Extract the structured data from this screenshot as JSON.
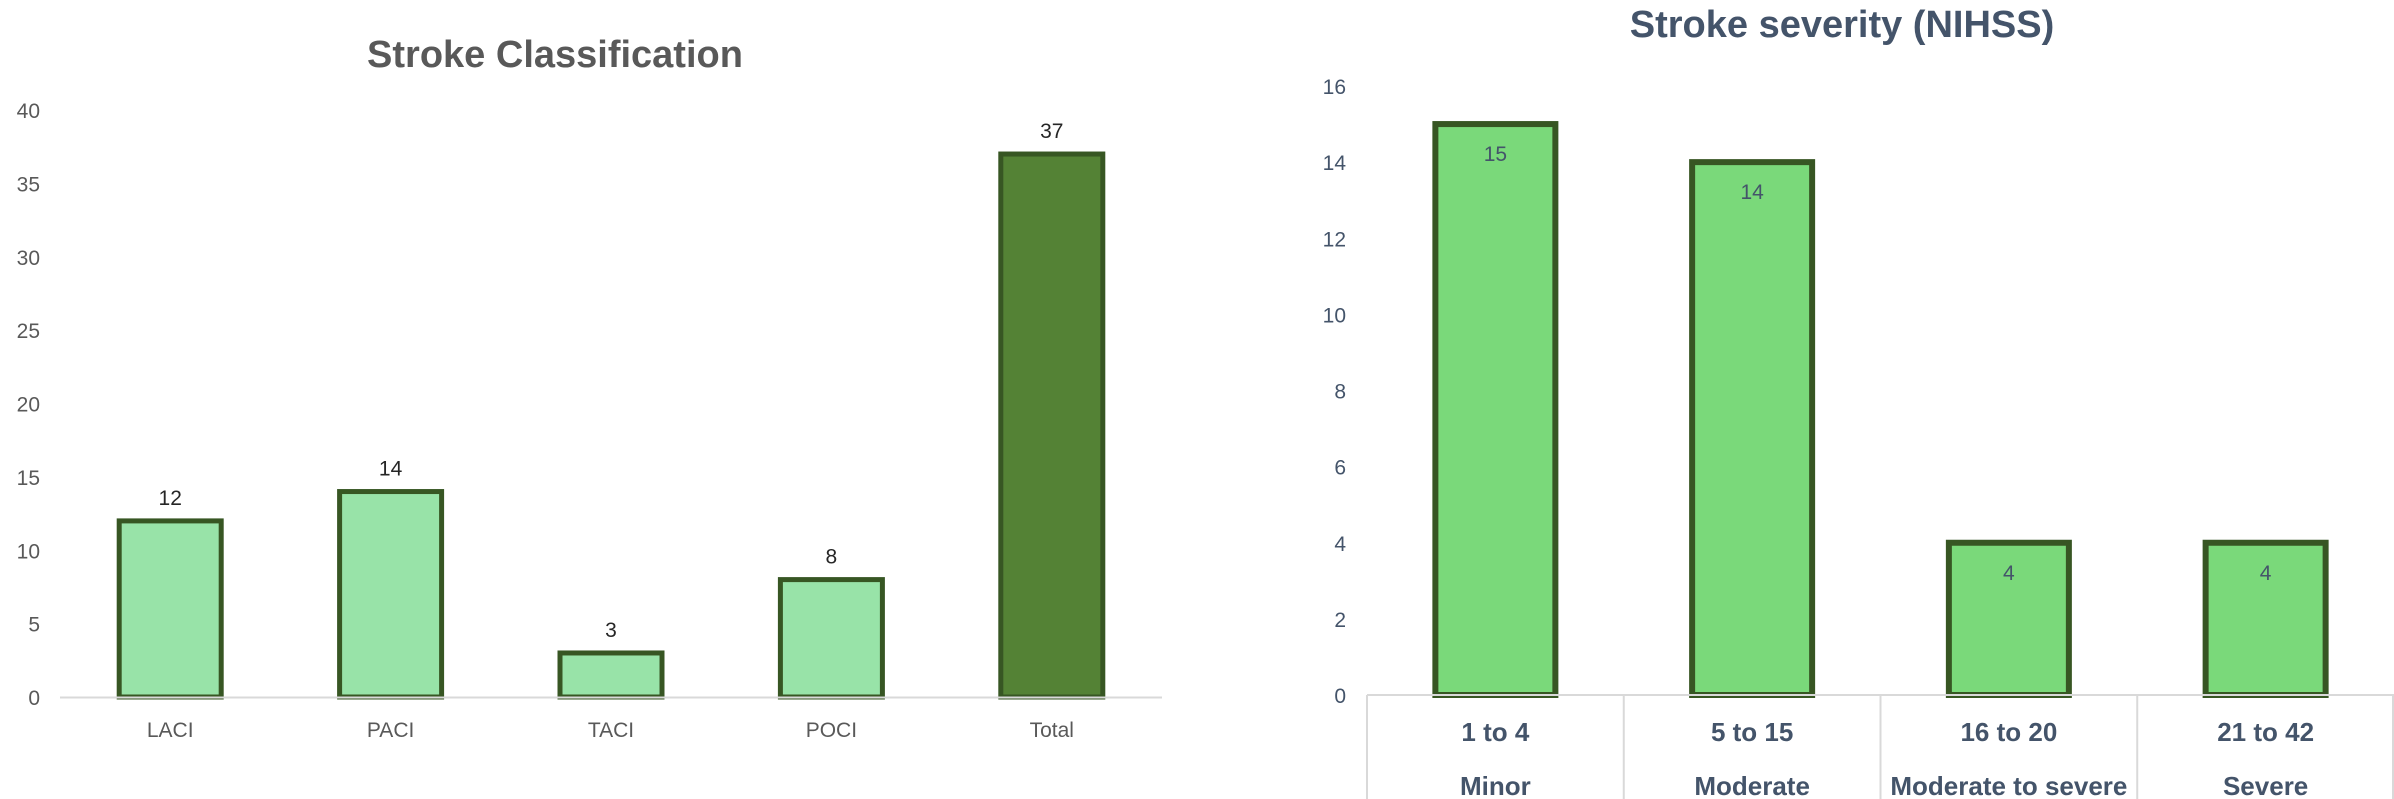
{
  "chart_data": [
    {
      "type": "bar",
      "title": "Stroke Classification",
      "xlabel": "",
      "ylabel": "",
      "categories": [
        "LACI",
        "PACI",
        "TACI",
        "POCI",
        "Total"
      ],
      "values": [
        12,
        14,
        3,
        8,
        37
      ],
      "ylim": [
        0,
        40
      ],
      "yticks": [
        "0",
        "5",
        "10",
        "15",
        "20",
        "25",
        "30",
        "35",
        "40"
      ],
      "grid": false,
      "data_labels": true,
      "colors": {
        "bar_fill": "#98e3a8",
        "total_fill": "#548235",
        "bar_border": "#375623",
        "axis": "#d9d9d9",
        "text": "#595959",
        "label_text": "#262626"
      }
    },
    {
      "type": "bar",
      "title": "Stroke severity (NIHSS)",
      "xlabel": "",
      "ylabel": "",
      "categories": [
        "1 to 4",
        "5 to 15",
        "16 to 20",
        "21 to 42"
      ],
      "groups": [
        "Minor",
        "Moderate",
        "Moderate to severe",
        "Severe"
      ],
      "values": [
        15,
        14,
        4,
        4
      ],
      "ylim": [
        0,
        16
      ],
      "yticks": [
        "0",
        "2",
        "4",
        "6",
        "8",
        "10",
        "12",
        "14",
        "16"
      ],
      "grid": false,
      "data_labels": true,
      "colors": {
        "bar_fill": "#7ad97a",
        "bar_border": "#375623",
        "axis": "#d9d9d9",
        "text": "#44546a"
      }
    }
  ]
}
